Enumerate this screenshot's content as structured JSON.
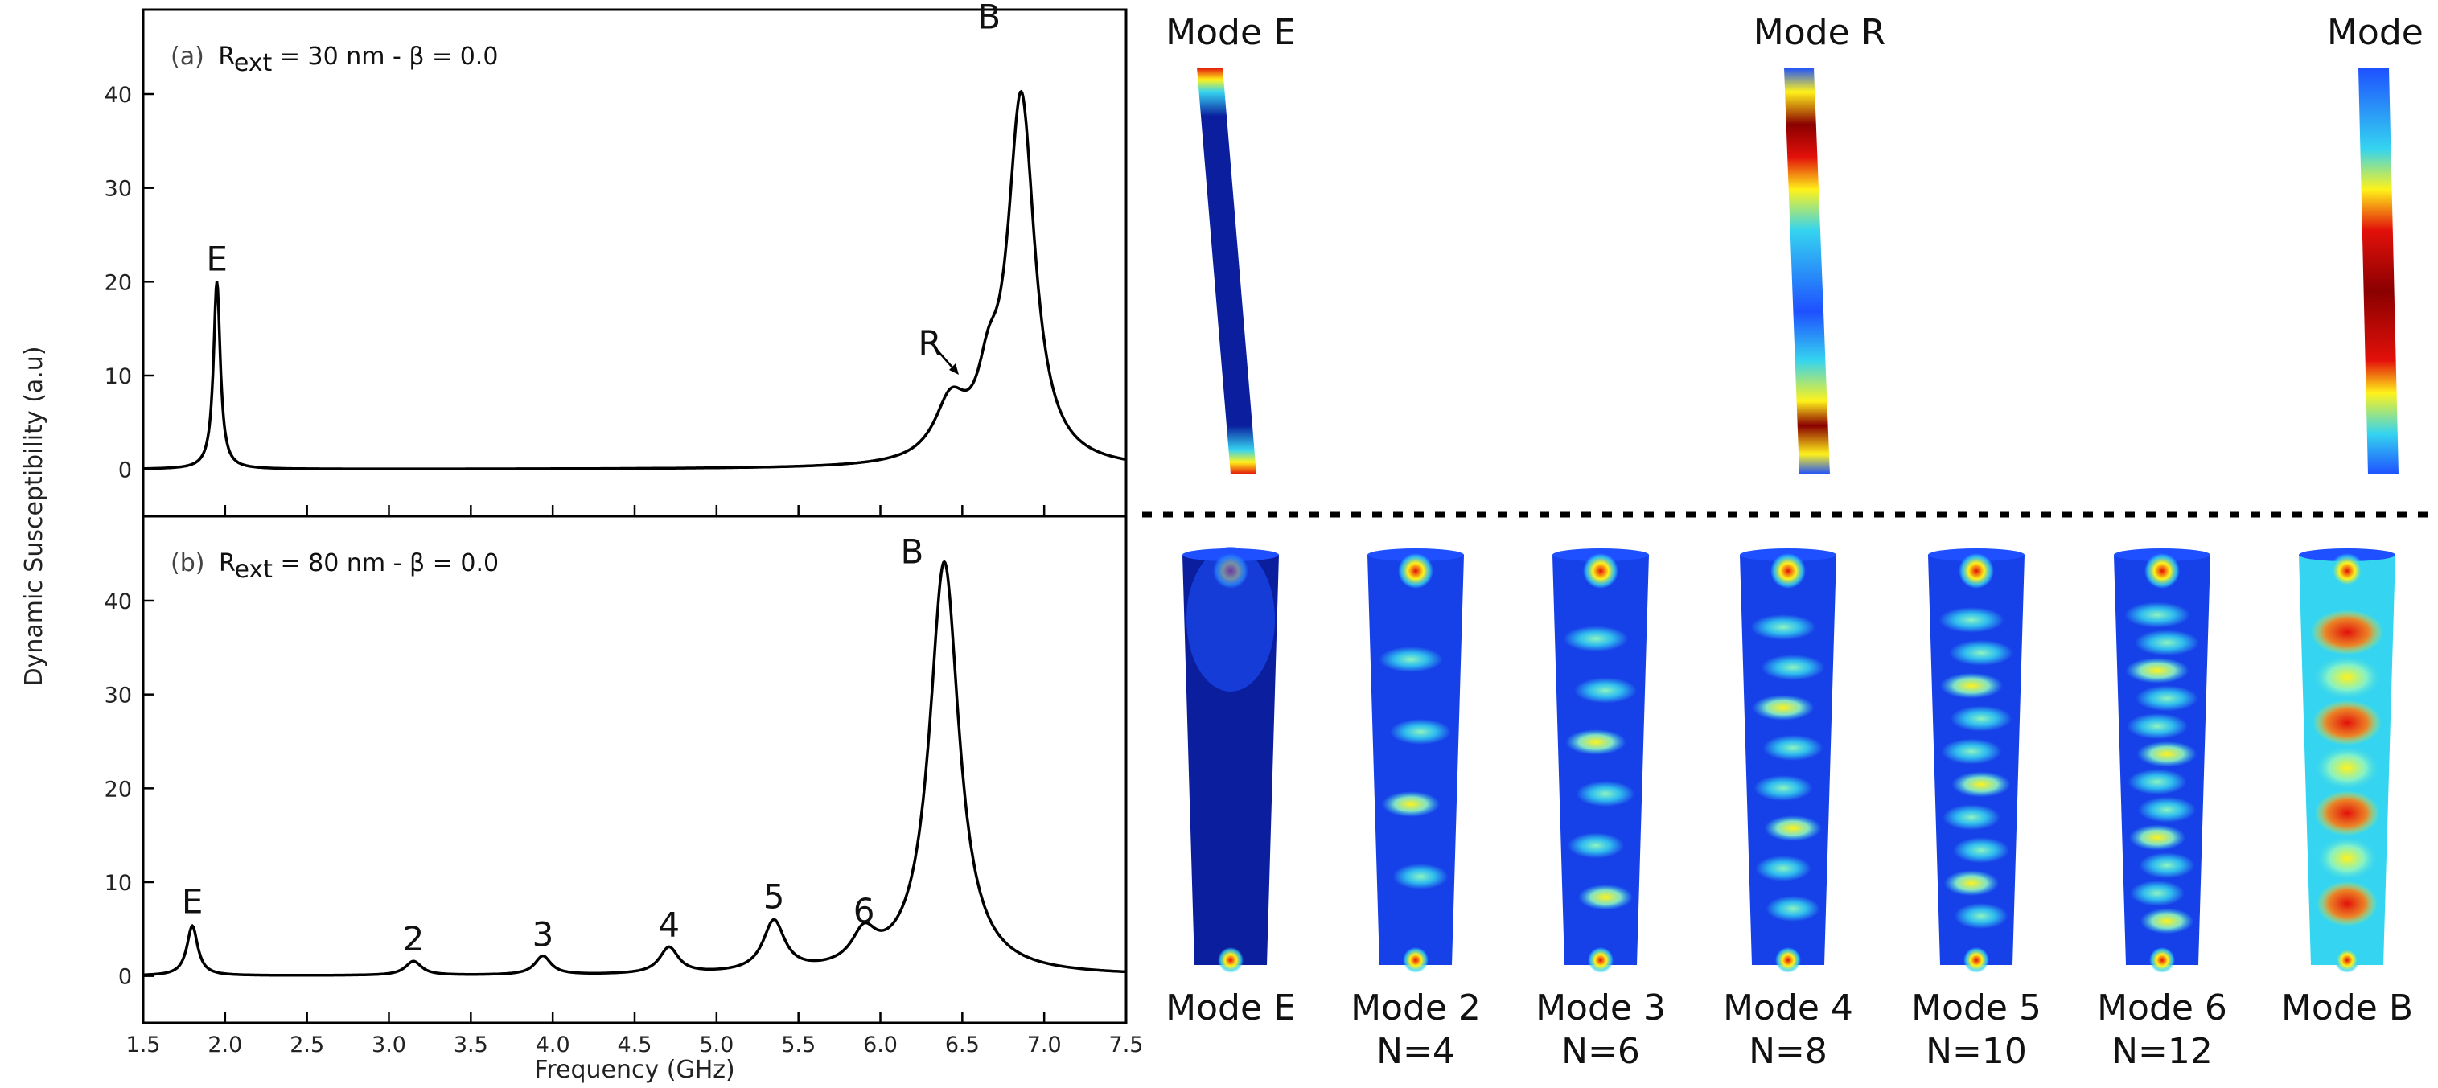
{
  "chart_data": [
    {
      "type": "line",
      "panel": "(a)",
      "label_prefix": "R",
      "label_sub": "ext",
      "label_rest": " = 30 nm - β = 0.0",
      "xlabel": "Frequency (GHz)",
      "ylabel": "Dynamic Susceptibility (a.u)",
      "xlim": [
        1.5,
        7.5
      ],
      "ylim": [
        -5,
        49
      ],
      "xticks": [
        "1.5",
        "2.0",
        "2.5",
        "3.0",
        "3.5",
        "4.0",
        "4.5",
        "5.0",
        "5.5",
        "6.0",
        "6.5",
        "7.0",
        "7.5"
      ],
      "yticks": [
        "0",
        "10",
        "20",
        "30",
        "40"
      ],
      "grid": false,
      "peaks": [
        {
          "f": 1.95,
          "amp": 20,
          "width": 0.025
        },
        {
          "f": 6.43,
          "amp": 6,
          "width": 0.12
        },
        {
          "f": 6.66,
          "amp": 6,
          "width": 0.08
        },
        {
          "f": 6.86,
          "amp": 39,
          "width": 0.1
        }
      ],
      "annotations": [
        {
          "text": "E",
          "x": 1.95,
          "y": 20
        },
        {
          "text": "R",
          "x": 6.45,
          "y": 10
        },
        {
          "text": "B",
          "x": 6.86,
          "y": 48
        }
      ]
    },
    {
      "type": "line",
      "panel": "(b)",
      "label_prefix": "R",
      "label_sub": "ext",
      "label_rest": " = 80 nm - β = 0.0",
      "xlabel": "Frequency (GHz)",
      "ylabel": "Dynamic Susceptibility (a.u)",
      "xlim": [
        1.5,
        7.5
      ],
      "ylim": [
        -5,
        49
      ],
      "xticks": [
        "1.5",
        "2.0",
        "2.5",
        "3.0",
        "3.5",
        "4.0",
        "4.5",
        "5.0",
        "5.5",
        "6.0",
        "6.5",
        "7.0",
        "7.5"
      ],
      "yticks": [
        "0",
        "10",
        "20",
        "30",
        "40"
      ],
      "grid": false,
      "peaks": [
        {
          "f": 1.8,
          "amp": 5.3,
          "width": 0.04
        },
        {
          "f": 3.15,
          "amp": 1.5,
          "width": 0.06
        },
        {
          "f": 3.94,
          "amp": 2,
          "width": 0.06
        },
        {
          "f": 4.71,
          "amp": 2.8,
          "width": 0.07
        },
        {
          "f": 5.35,
          "amp": 5.4,
          "width": 0.08
        },
        {
          "f": 5.9,
          "amp": 3.4,
          "width": 0.09
        },
        {
          "f": 6.39,
          "amp": 44,
          "width": 0.11
        }
      ],
      "annotations": [
        {
          "text": "E",
          "x": 1.8,
          "y": 5.5
        },
        {
          "text": "2",
          "x": 3.15,
          "y": 1.5
        },
        {
          "text": "3",
          "x": 3.94,
          "y": 2
        },
        {
          "text": "4",
          "x": 4.71,
          "y": 3
        },
        {
          "text": "5",
          "x": 5.35,
          "y": 6
        },
        {
          "text": "6",
          "x": 5.9,
          "y": 4.5
        },
        {
          "text": "B",
          "x": 6.39,
          "y": 45
        }
      ]
    }
  ],
  "modes_top": {
    "titles": [
      "Mode E",
      "Mode R",
      "Mode B"
    ]
  },
  "modes_bottom": {
    "titles": [
      "Mode E",
      "Mode 2",
      "Mode 3",
      "Mode 4",
      "Mode 5",
      "Mode 6",
      "Mode B"
    ],
    "subs": [
      "",
      "N=4",
      "N=6",
      "N=8",
      "N=10",
      "N=12",
      ""
    ]
  },
  "colors": {
    "curve": "#000000",
    "jet_dark_blue": "#0a1e9e",
    "jet_blue": "#1e50ff",
    "jet_cyan": "#35d4f0",
    "jet_yellow": "#fff21a",
    "jet_red": "#e3100a",
    "jet_dark_red": "#8a0000",
    "separator": "#000000"
  }
}
